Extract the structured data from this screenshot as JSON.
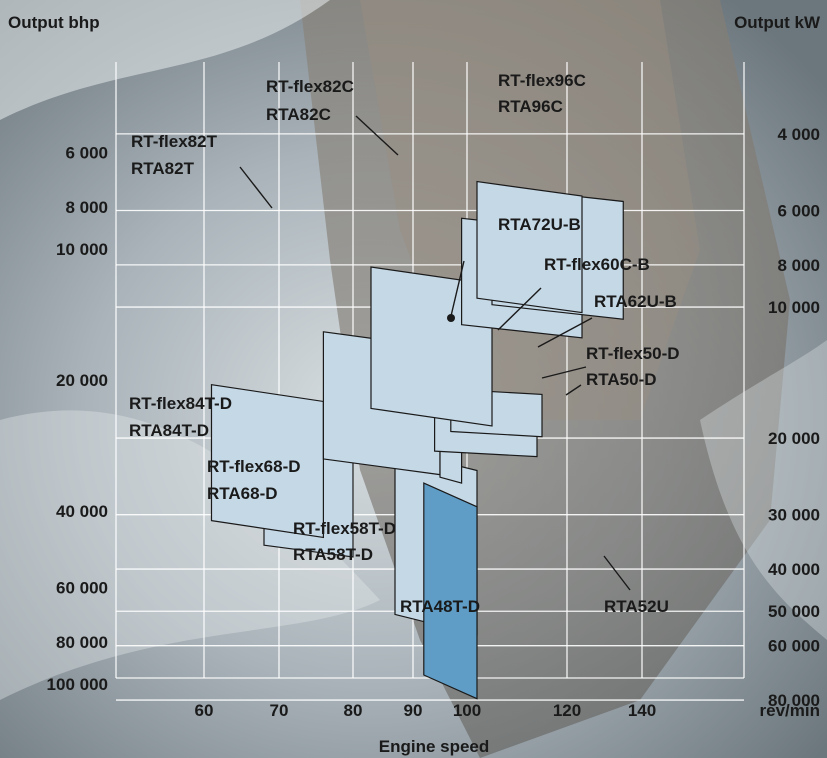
{
  "chart_data": {
    "type": "area",
    "title": "",
    "xlabel": "Engine speed",
    "x_unit": "rev/min",
    "ylabel_left": "Output  bhp",
    "ylabel_right": "Output kW",
    "y_scale": "log",
    "xlim": [
      50,
      150
    ],
    "ylim_bhp": [
      4000,
      130000
    ],
    "x_ticks": [
      "60",
      "70",
      "80",
      "90",
      "100",
      "120",
      "140"
    ],
    "y_ticks_bhp": [
      "6 000",
      "8 000",
      "10 000",
      "20 000",
      "40 000",
      "60 000",
      "80 000",
      "100 000"
    ],
    "y_ticks_kw": [
      "4 000",
      "6 000",
      "8 000",
      "10 000",
      "20 000",
      "30 000",
      "40 000",
      "50 000",
      "60 000",
      "80 000"
    ],
    "grid": true,
    "colors": {
      "envelope": "#c5d8e6",
      "highlight": "#5f9dc6",
      "outline": "#1a1a1a"
    },
    "series": [
      {
        "name": "RT-flex82T / RTA82T",
        "rpm": [
          68,
          80
        ],
        "bhp_low": 29000,
        "bhp_high": 51000
      },
      {
        "name": "RT-flex84T-D / RTA84T-D",
        "rpm": [
          61,
          76
        ],
        "bhp_low": 20500,
        "bhp_high": 46000
      },
      {
        "name": "RT-flex82C / RTA82C",
        "rpm": [
          87,
          102
        ],
        "bhp_low": 29000,
        "bhp_high": 77000
      },
      {
        "name": "RT-flex96C / RTA96C",
        "rpm": [
          92,
          102
        ],
        "bhp_low": 34500,
        "bhp_high": 108000
      },
      {
        "name": "RT-flex68-D / RTA68-D",
        "rpm": [
          76,
          95
        ],
        "bhp_low": 15500,
        "bhp_high": 33000
      },
      {
        "name": "RTA72U-B",
        "rpm": [
          95,
          99
        ],
        "bhp_low": 26000,
        "bhp_high": 34500
      },
      {
        "name": "RT-flex60C-B",
        "rpm": [
          94,
          114
        ],
        "bhp_low": 23000,
        "bhp_high": 30000
      },
      {
        "name": "RTA62U-B",
        "rpm": [
          97,
          115
        ],
        "bhp_low": 21000,
        "bhp_high": 27000
      },
      {
        "name": "RT-flex58T-D / RTA58T-D",
        "rpm": [
          83,
          105
        ],
        "bhp_low": 11000,
        "bhp_high": 25500
      },
      {
        "name": "RT-flex50-D / RTA50-D",
        "rpm": [
          99,
          124
        ],
        "bhp_low": 8500,
        "bhp_high": 16000
      },
      {
        "name": "RTA52U",
        "rpm": [
          105,
          135
        ],
        "bhp_low": 7200,
        "bhp_high": 14500
      },
      {
        "name": "RTA48T-D",
        "rpm": [
          102,
          124
        ],
        "bhp_low": 7000,
        "bhp_high": 14000
      }
    ],
    "labels": [
      {
        "text": "RT-flex82T",
        "series": "RT-flex82T / RTA82T"
      },
      {
        "text": "RTA82T",
        "series": "RT-flex82T / RTA82T"
      },
      {
        "text": "RT-flex82C",
        "series": "RT-flex82C / RTA82C"
      },
      {
        "text": "RTA82C",
        "series": "RT-flex82C / RTA82C"
      },
      {
        "text": "RT-flex96C",
        "series": "RT-flex96C / RTA96C"
      },
      {
        "text": "RTA96C",
        "series": "RT-flex96C / RTA96C"
      },
      {
        "text": "RTA72U-B",
        "series": "RTA72U-B"
      },
      {
        "text": "RT-flex60C-B",
        "series": "RT-flex60C-B"
      },
      {
        "text": "RTA62U-B",
        "series": "RTA62U-B"
      },
      {
        "text": "RT-flex50-D",
        "series": "RT-flex50-D / RTA50-D"
      },
      {
        "text": "RTA50-D",
        "series": "RT-flex50-D / RTA50-D"
      },
      {
        "text": "RT-flex84T-D",
        "series": "RT-flex84T-D / RTA84T-D"
      },
      {
        "text": "RTA84T-D",
        "series": "RT-flex84T-D / RTA84T-D"
      },
      {
        "text": "RT-flex68-D",
        "series": "RT-flex68-D / RTA68-D"
      },
      {
        "text": "RTA68-D",
        "series": "RT-flex68-D / RTA68-D"
      },
      {
        "text": "RT-flex58T-D",
        "series": "RT-flex58T-D / RTA58T-D"
      },
      {
        "text": "RTA58T-D",
        "series": "RT-flex58T-D / RTA58T-D"
      },
      {
        "text": "RTA48T-D",
        "series": "RTA48T-D"
      },
      {
        "text": "RTA52U",
        "series": "RTA52U"
      }
    ]
  }
}
